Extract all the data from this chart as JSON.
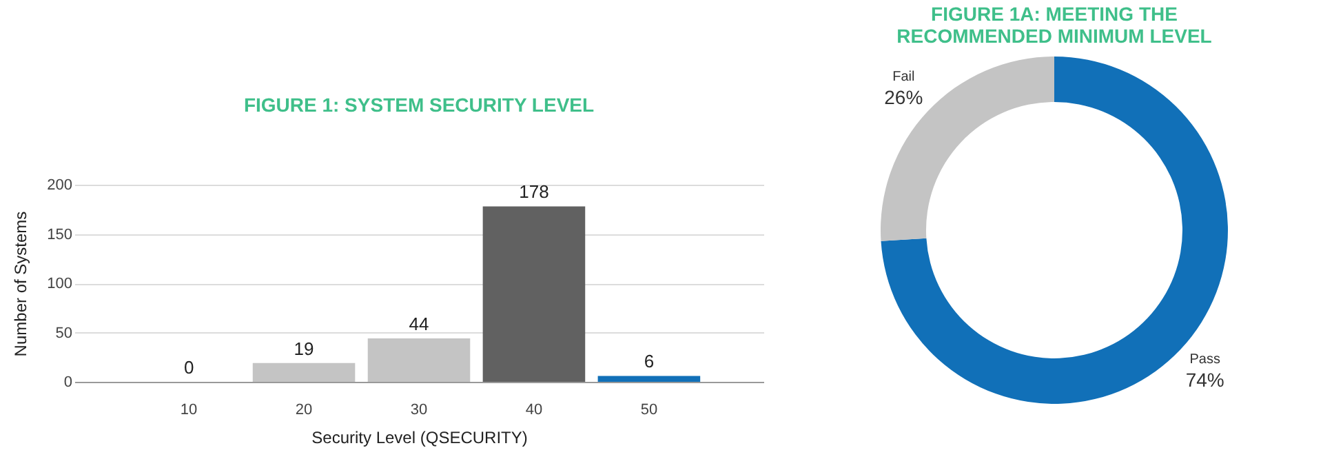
{
  "chart_data": [
    {
      "type": "bar",
      "title": "FIGURE 1: SYSTEM SECURITY LEVEL",
      "xlabel": "Security Level (QSECURITY)",
      "ylabel": "Number of Systems",
      "categories": [
        "10",
        "20",
        "30",
        "40",
        "50"
      ],
      "values": [
        0,
        19,
        44,
        178,
        6
      ],
      "colors": [
        "#c4c4c4",
        "#c4c4c4",
        "#c4c4c4",
        "#616161",
        "#1170b8"
      ],
      "ylim": [
        0,
        200
      ],
      "yticks": [
        0,
        50,
        100,
        150,
        200
      ],
      "grid": "y",
      "data_labels": true
    },
    {
      "type": "donut",
      "title": "FIGURE 1A: MEETING THE RECOMMENDED MINIMUM LEVEL",
      "categories": [
        "Pass",
        "Fail"
      ],
      "values": [
        74,
        26
      ],
      "colors": [
        "#1170b8",
        "#c4c4c4"
      ],
      "value_labels": [
        "74%",
        "26%"
      ]
    }
  ]
}
